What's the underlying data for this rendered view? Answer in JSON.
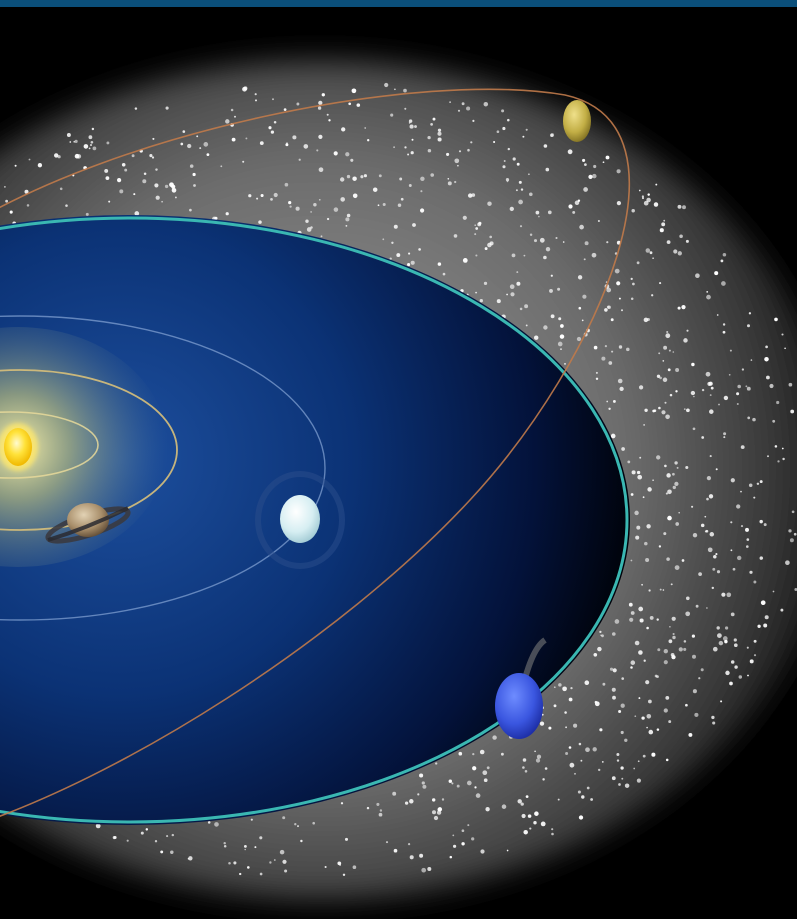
{
  "colors": {
    "top_bar": "#0b4f7a",
    "space_background": "#000000",
    "belt_haze": "#5a5a5a",
    "inner_disk": "#0a2c6a",
    "outer_orbit": "#3ab7b2",
    "eccentric_orbit": "#c07a4a",
    "inner_orbit": "#d8c07a",
    "middle_orbit": "#6f8fc0",
    "sun": "#ffd21a",
    "ringed_planet": "#b8a07a",
    "icy_planet": "#dff2f5",
    "blue_planet": "#3a56e0",
    "distant_planet": "#c7b54a"
  },
  "objects": [
    {
      "name": "sun",
      "icon": "sun-icon"
    },
    {
      "name": "ringed-planet",
      "icon": "ringed-planet-icon"
    },
    {
      "name": "icy-planet",
      "icon": "icy-planet-icon"
    },
    {
      "name": "blue-planet",
      "icon": "blue-planet-icon"
    },
    {
      "name": "distant-planet",
      "icon": "distant-planet-icon"
    }
  ]
}
